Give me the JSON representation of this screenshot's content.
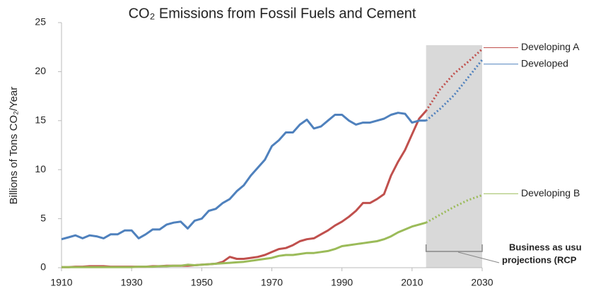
{
  "chart_data": {
    "type": "line",
    "title": "CO₂ Emissions from Fossil Fuels and Cement",
    "y_label": "Billions of Tons CO₂/Year",
    "x": [
      1910,
      1912,
      1914,
      1916,
      1918,
      1920,
      1922,
      1924,
      1926,
      1928,
      1930,
      1932,
      1934,
      1936,
      1938,
      1940,
      1942,
      1944,
      1946,
      1948,
      1950,
      1952,
      1954,
      1956,
      1958,
      1960,
      1962,
      1964,
      1966,
      1968,
      1970,
      1972,
      1974,
      1976,
      1978,
      1980,
      1982,
      1984,
      1986,
      1988,
      1990,
      1992,
      1994,
      1996,
      1998,
      2000,
      2002,
      2004,
      2006,
      2008,
      2010,
      2012,
      2014
    ],
    "projection_x": [
      2014,
      2018,
      2022,
      2026,
      2030
    ],
    "series": [
      {
        "name": "Developing A",
        "color": "#c0504d",
        "values": [
          0.05,
          0.05,
          0.1,
          0.1,
          0.15,
          0.15,
          0.15,
          0.1,
          0.1,
          0.1,
          0.1,
          0.1,
          0.1,
          0.15,
          0.15,
          0.2,
          0.2,
          0.2,
          0.2,
          0.25,
          0.3,
          0.35,
          0.4,
          0.6,
          1.1,
          0.9,
          0.9,
          1.0,
          1.1,
          1.3,
          1.6,
          1.9,
          2.0,
          2.3,
          2.7,
          2.9,
          3.0,
          3.4,
          3.8,
          4.3,
          4.7,
          5.2,
          5.8,
          6.6,
          6.6,
          7.0,
          7.5,
          9.4,
          10.8,
          12.0,
          13.6,
          15.2,
          16.0
        ],
        "projection_values": [
          16.0,
          18.2,
          19.8,
          21.0,
          22.3
        ]
      },
      {
        "name": "Developed",
        "color": "#4f81bd",
        "values": [
          2.9,
          3.1,
          3.3,
          3.0,
          3.3,
          3.2,
          3.0,
          3.4,
          3.4,
          3.8,
          3.8,
          3.0,
          3.4,
          3.9,
          3.9,
          4.4,
          4.6,
          4.7,
          4.0,
          4.8,
          5.0,
          5.8,
          6.0,
          6.6,
          7.0,
          7.8,
          8.4,
          9.4,
          10.2,
          11.0,
          12.4,
          13.0,
          13.8,
          13.8,
          14.6,
          15.1,
          14.2,
          14.4,
          15.0,
          15.6,
          15.6,
          15.0,
          14.6,
          14.8,
          14.8,
          15.0,
          15.2,
          15.6,
          15.8,
          15.7,
          14.8,
          15.0,
          15.0
        ],
        "projection_values": [
          15.0,
          16.2,
          17.6,
          19.4,
          21.2
        ]
      },
      {
        "name": "Developing B",
        "color": "#9bbb59",
        "values": [
          0.05,
          0.05,
          0.05,
          0.05,
          0.05,
          0.05,
          0.05,
          0.05,
          0.05,
          0.05,
          0.05,
          0.1,
          0.1,
          0.1,
          0.15,
          0.15,
          0.2,
          0.2,
          0.3,
          0.25,
          0.3,
          0.35,
          0.4,
          0.45,
          0.5,
          0.55,
          0.6,
          0.7,
          0.8,
          0.9,
          1.0,
          1.2,
          1.3,
          1.3,
          1.4,
          1.5,
          1.5,
          1.6,
          1.7,
          1.9,
          2.2,
          2.3,
          2.4,
          2.5,
          2.6,
          2.7,
          2.9,
          3.2,
          3.6,
          3.9,
          4.2,
          4.4,
          4.6
        ],
        "projection_values": [
          4.6,
          5.4,
          6.2,
          6.9,
          7.4
        ]
      }
    ],
    "projection_period": [
      2014,
      2030
    ],
    "annotation": [
      "Business as usu",
      "projections (RCP"
    ],
    "xlim": [
      1910,
      2030
    ],
    "xticks": [
      1910,
      1930,
      1950,
      1970,
      1990,
      2010,
      2030
    ],
    "ylim": [
      0,
      25
    ],
    "yticks": [
      0,
      5,
      10,
      15,
      20,
      25
    ],
    "grid": false
  }
}
